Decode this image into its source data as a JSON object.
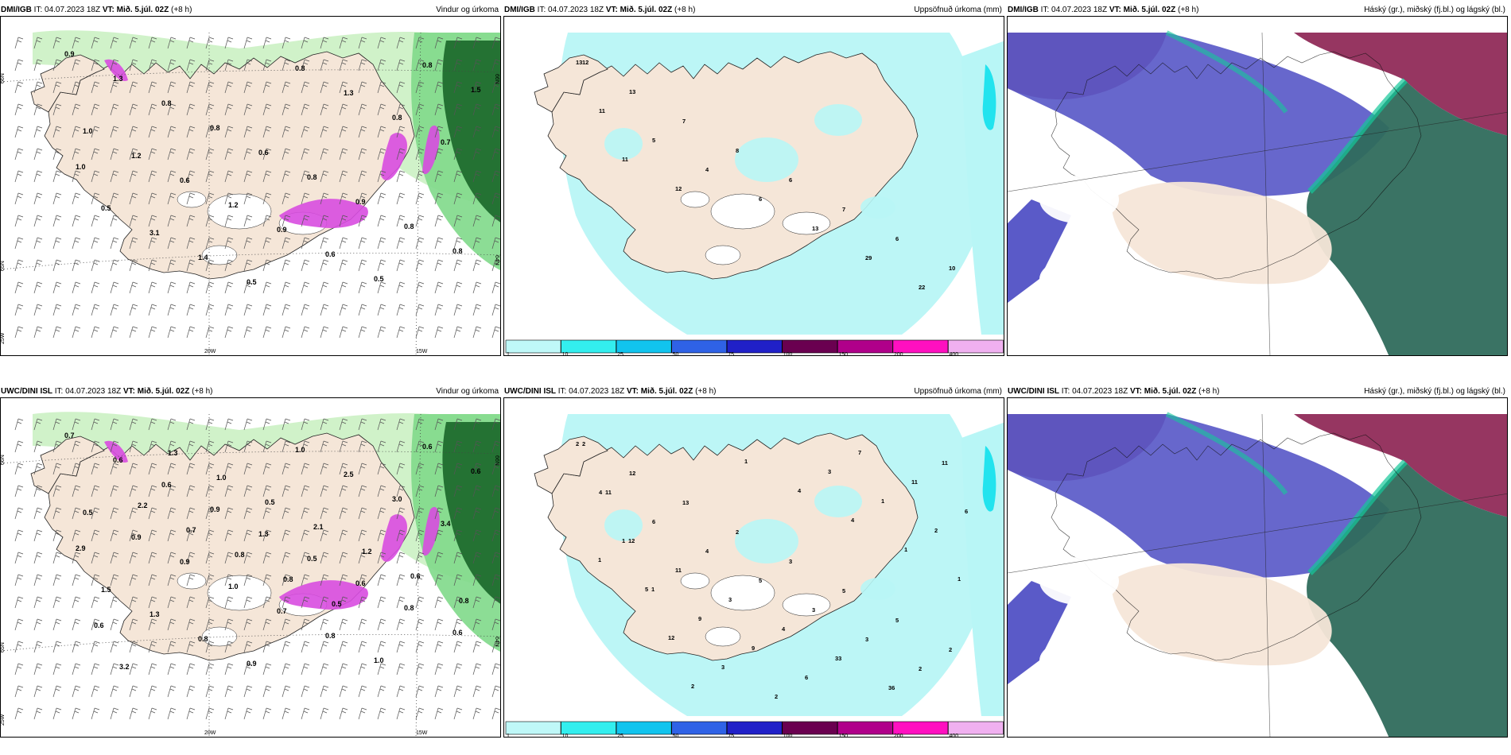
{
  "panels": [
    {
      "id": "p1",
      "model": "DMI/IGB",
      "it_label": "IT:",
      "it_value": "04.07.2023 18Z",
      "vt_label": "VT:",
      "vt_value": "Mið. 5.júl. 02Z",
      "lead": "(+8 h)",
      "field": "Vindur og úrkoma",
      "axis_labels": [
        "66N",
        "65N",
        "66N",
        "64N",
        "25W",
        "20W",
        "15W"
      ],
      "values": [
        "0.9",
        "1.3",
        "0.8",
        "0.8",
        "0.6",
        "0.8",
        "0.9",
        "0.8",
        "0.8",
        "1.0",
        "1.2",
        "0.6",
        "1.2",
        "0.9",
        "0.6",
        "0.5",
        "0.8",
        "1.5",
        "0.5",
        "3.1",
        "1.4",
        "0.5",
        "0.8",
        "1.3",
        "0.8",
        "0.7",
        "1.0"
      ]
    },
    {
      "id": "p2",
      "model": "DMI/IGB",
      "it_label": "IT:",
      "it_value": "04.07.2023 18Z",
      "vt_label": "VT:",
      "vt_value": "Mið. 5.júl. 02Z",
      "lead": "(+8 h)",
      "field": "Uppsöfnuð úrkoma (mm)",
      "values": [
        "13",
        "13",
        "7",
        "8",
        "6",
        "7",
        "6",
        "10",
        "11",
        "5",
        "4",
        "6",
        "13",
        "29",
        "22",
        "12",
        "11",
        "12"
      ],
      "colorbar": [
        "1",
        "10",
        "25",
        "50",
        "75",
        "100",
        "150",
        "200",
        "400"
      ]
    },
    {
      "id": "p3",
      "model": "DMI/IGB",
      "it_label": "IT:",
      "it_value": "04.07.2023 18Z",
      "vt_label": "VT:",
      "vt_value": "Mið. 5.júl. 02Z",
      "lead": "(+8 h)",
      "field": "Háský (gr.), miðský (fj.bl.) og lágský (bl.)"
    },
    {
      "id": "p4",
      "model": "UWC/DINI ISL",
      "it_label": "IT:",
      "it_value": "04.07.2023 18Z",
      "vt_label": "VT:",
      "vt_value": "Mið. 5.júl. 02Z",
      "lead": "(+8 h)",
      "field": "Vindur og úrkoma",
      "axis_labels": [
        "66N",
        "65N",
        "66N",
        "64N",
        "25W",
        "20W",
        "15W"
      ],
      "values": [
        "0.7",
        "0.6",
        "0.6",
        "0.9",
        "1.3",
        "0.5",
        "0.6",
        "0.8",
        "0.6",
        "0.5",
        "0.9",
        "0.9",
        "1.0",
        "0.7",
        "0.8",
        "1.0",
        "0.6",
        "0.6",
        "1.5",
        "1.3",
        "0.8",
        "0.9",
        "1.0",
        "2.5",
        "3.0",
        "3.4",
        "2.9",
        "3.2",
        "1.3",
        "1.0",
        "0.5",
        "2.1",
        "1.2",
        "0.6",
        "0.8",
        "0.6",
        "2.2",
        "0.7",
        "0.8",
        "0.8",
        "0.5"
      ]
    },
    {
      "id": "p5",
      "model": "UWC/DINI ISL",
      "it_label": "IT:",
      "it_value": "04.07.2023 18Z",
      "vt_label": "VT:",
      "vt_value": "Mið. 5.júl. 02Z",
      "lead": "(+8 h)",
      "field": "Uppsöfnuð úrkoma (mm)",
      "values": [
        "2",
        "12",
        "13",
        "2",
        "3",
        "5",
        "5",
        "2",
        "4",
        "6",
        "4",
        "5",
        "3",
        "3",
        "2",
        "2",
        "1",
        "11",
        "3",
        "4",
        "33",
        "36",
        "11",
        "11",
        "5",
        "9",
        "9",
        "6",
        "7",
        "11",
        "6",
        "12",
        "12",
        "3",
        "2",
        "3",
        "1",
        "2",
        "1",
        "1",
        "2",
        "1",
        "4",
        "4",
        "1",
        "1"
      ],
      "colorbar": [
        "1",
        "10",
        "25",
        "50",
        "75",
        "100",
        "150",
        "200",
        "400"
      ]
    },
    {
      "id": "p6",
      "model": "UWC/DINI ISL",
      "it_label": "IT:",
      "it_value": "04.07.2023 18Z",
      "vt_label": "VT:",
      "vt_value": "Mið. 5.júl. 02Z",
      "lead": "(+8 h)",
      "field": "Háský (gr.), miðský (fj.bl.) og lágský (bl.)"
    }
  ],
  "colors": {
    "land": "#f5e6d8",
    "light_green": "#c8f0c0",
    "green": "#7fd98a",
    "dark_green": "#1f6b2e",
    "magenta": "#d84ce0",
    "cyan_light": "#b8f6f6",
    "cyan": "#22e3ee",
    "cloud_high": "#8b2050",
    "cloud_mid": "#5a5ac8",
    "cloud_low": "#2f6b5c",
    "cloud_teal": "#16c89a"
  },
  "colorbar_colors": [
    "#bff8f8",
    "#33eeee",
    "#11c4ee",
    "#2f62e6",
    "#2020c8",
    "#6a0050",
    "#b0008a",
    "#ff10c0",
    "#f0b0f0"
  ]
}
